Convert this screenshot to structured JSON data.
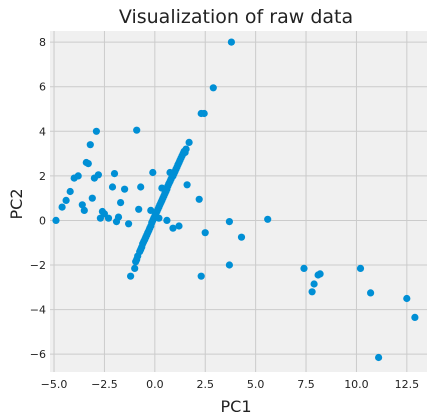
{
  "chart_data": {
    "type": "scatter",
    "title": "Visualization of raw data",
    "xlabel": "PC1",
    "ylabel": "PC2",
    "xlim": [
      -5.2,
      13.5
    ],
    "ylim": [
      -6.8,
      8.5
    ],
    "xticks": [
      -5.0,
      -2.5,
      0.0,
      2.5,
      5.0,
      7.5,
      10.0,
      12.5
    ],
    "xtick_labels": [
      "−5.0",
      "−2.5",
      "0.0",
      "2.5",
      "5.0",
      "7.5",
      "10.0",
      "12.5"
    ],
    "yticks": [
      -6,
      -4,
      -2,
      0,
      2,
      4,
      6,
      8
    ],
    "ytick_labels": [
      "−6",
      "−4",
      "−2",
      "0",
      "2",
      "4",
      "6",
      "8"
    ],
    "grid": true,
    "background_color": "#f0f0f0",
    "marker_color": "#008fd5",
    "series": [
      {
        "points": [
          [
            -4.9,
            0.0
          ],
          [
            -4.6,
            0.6
          ],
          [
            -4.4,
            0.9
          ],
          [
            -4.2,
            1.3
          ],
          [
            -4.0,
            1.9
          ],
          [
            -3.8,
            2.0
          ],
          [
            -3.6,
            0.7
          ],
          [
            -3.5,
            0.45
          ],
          [
            -3.4,
            2.6
          ],
          [
            -3.3,
            2.55
          ],
          [
            -3.2,
            3.4
          ],
          [
            -3.1,
            1.0
          ],
          [
            -3.0,
            1.9
          ],
          [
            -2.9,
            4.0
          ],
          [
            -2.8,
            2.05
          ],
          [
            -2.7,
            0.1
          ],
          [
            -2.6,
            0.4
          ],
          [
            -2.5,
            0.3
          ],
          [
            -2.3,
            0.1
          ],
          [
            -2.1,
            1.5
          ],
          [
            -2.0,
            2.1
          ],
          [
            -1.9,
            -0.05
          ],
          [
            -1.8,
            0.15
          ],
          [
            -1.7,
            0.8
          ],
          [
            -1.5,
            1.4
          ],
          [
            -1.3,
            -0.15
          ],
          [
            -1.2,
            -2.5
          ],
          [
            -1.0,
            -2.15
          ],
          [
            -0.9,
            4.05
          ],
          [
            -0.8,
            0.5
          ],
          [
            -0.7,
            1.5
          ],
          [
            -0.1,
            2.15
          ],
          [
            0.6,
            0.0
          ],
          [
            0.9,
            -0.35
          ],
          [
            1.2,
            -0.25
          ],
          [
            1.6,
            1.6
          ],
          [
            2.2,
            0.95
          ],
          [
            2.3,
            -2.5
          ],
          [
            2.3,
            4.8
          ],
          [
            2.45,
            4.8
          ],
          [
            2.5,
            -0.55
          ],
          [
            2.9,
            5.95
          ],
          [
            3.7,
            -0.05
          ],
          [
            3.7,
            -2.0
          ],
          [
            3.8,
            8.0
          ],
          [
            4.3,
            -0.75
          ],
          [
            5.6,
            0.05
          ],
          [
            7.4,
            -2.15
          ],
          [
            7.8,
            -3.2
          ],
          [
            7.9,
            -2.85
          ],
          [
            8.1,
            -2.45
          ],
          [
            8.2,
            -2.4
          ],
          [
            10.2,
            -2.15
          ],
          [
            10.7,
            -3.25
          ],
          [
            11.1,
            -6.15
          ],
          [
            12.5,
            -3.5
          ],
          [
            12.9,
            -4.35
          ],
          [
            -0.95,
            -1.85
          ],
          [
            -0.85,
            -1.6
          ],
          [
            -0.75,
            -1.4
          ],
          [
            -0.65,
            -1.2
          ],
          [
            -0.55,
            -0.95
          ],
          [
            -0.45,
            -0.75
          ],
          [
            -0.35,
            -0.55
          ],
          [
            -0.25,
            -0.35
          ],
          [
            -0.15,
            -0.1
          ],
          [
            -0.05,
            0.1
          ],
          [
            0.05,
            0.3
          ],
          [
            0.15,
            0.5
          ],
          [
            0.25,
            0.7
          ],
          [
            0.35,
            0.9
          ],
          [
            0.45,
            1.1
          ],
          [
            0.55,
            1.3
          ],
          [
            0.65,
            1.55
          ],
          [
            0.75,
            1.75
          ],
          [
            0.85,
            1.95
          ],
          [
            0.95,
            2.1
          ],
          [
            1.05,
            2.3
          ],
          [
            1.15,
            2.5
          ],
          [
            1.25,
            2.7
          ],
          [
            1.35,
            2.9
          ],
          [
            1.45,
            3.1
          ],
          [
            1.55,
            3.2
          ],
          [
            1.7,
            3.5
          ],
          [
            -0.9,
            -1.75
          ],
          [
            -0.7,
            -1.3
          ],
          [
            -0.5,
            -0.85
          ],
          [
            -0.3,
            -0.45
          ],
          [
            -0.1,
            0.0
          ],
          [
            0.1,
            0.4
          ],
          [
            0.3,
            0.8
          ],
          [
            0.5,
            1.2
          ],
          [
            0.7,
            1.65
          ],
          [
            0.9,
            2.0
          ],
          [
            1.1,
            2.4
          ],
          [
            1.3,
            2.8
          ],
          [
            1.5,
            3.05
          ],
          [
            -0.6,
            -1.05
          ],
          [
            -0.4,
            -0.65
          ],
          [
            -0.2,
            -0.25
          ],
          [
            0.0,
            0.2
          ],
          [
            0.2,
            0.6
          ],
          [
            0.4,
            1.0
          ],
          [
            0.6,
            1.4
          ],
          [
            0.8,
            1.85
          ],
          [
            1.0,
            2.2
          ],
          [
            1.2,
            2.6
          ],
          [
            1.4,
            3.0
          ],
          [
            0.2,
            0.1
          ],
          [
            -0.2,
            0.45
          ],
          [
            0.35,
            1.45
          ],
          [
            0.75,
            2.15
          ]
        ]
      }
    ]
  }
}
